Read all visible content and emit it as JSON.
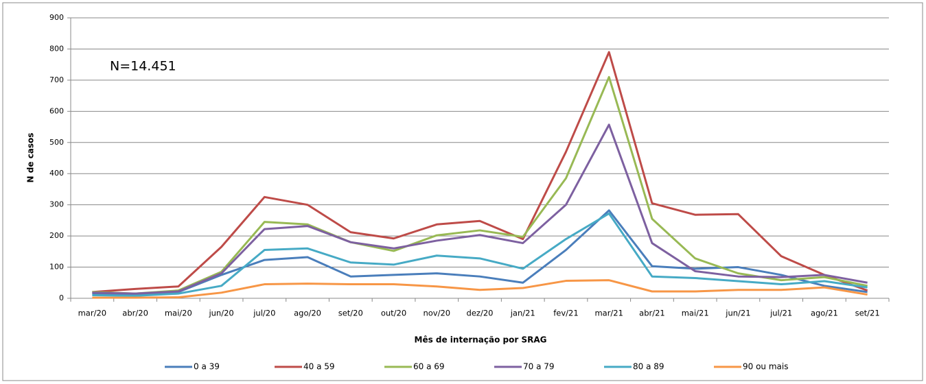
{
  "chart_data": {
    "type": "line",
    "annotation": "N=14.451",
    "xlabel": "Mês de internação por SRAG",
    "ylabel": "N de casos",
    "categories": [
      "mar/20",
      "abr/20",
      "mai/20",
      "jun/20",
      "jul/20",
      "ago/20",
      "set/20",
      "out/20",
      "nov/20",
      "dez/20",
      "jan/21",
      "fev/21",
      "mar/21",
      "abr/21",
      "mai/21",
      "jun/21",
      "jul/21",
      "ago/21",
      "set/21"
    ],
    "series": [
      {
        "name": "0 a 39",
        "color": "#4a7ebb",
        "values": [
          15,
          12,
          20,
          75,
          123,
          132,
          70,
          75,
          80,
          70,
          50,
          155,
          282,
          103,
          95,
          100,
          75,
          40,
          20
        ]
      },
      {
        "name": "40 a 59",
        "color": "#be4b48",
        "values": [
          20,
          30,
          38,
          165,
          325,
          300,
          212,
          192,
          237,
          248,
          190,
          470,
          790,
          305,
          268,
          270,
          135,
          75,
          25
        ]
      },
      {
        "name": "60 a 69",
        "color": "#98b954",
        "values": [
          20,
          15,
          25,
          85,
          245,
          237,
          180,
          152,
          202,
          218,
          197,
          385,
          710,
          255,
          128,
          80,
          58,
          68,
          40
        ]
      },
      {
        "name": "70 a 79",
        "color": "#7d60a0",
        "values": [
          18,
          15,
          22,
          80,
          222,
          232,
          180,
          160,
          185,
          203,
          177,
          300,
          557,
          177,
          87,
          70,
          68,
          75,
          50
        ]
      },
      {
        "name": "80 a 89",
        "color": "#46aac5",
        "values": [
          10,
          8,
          15,
          40,
          155,
          160,
          115,
          108,
          137,
          128,
          95,
          190,
          272,
          70,
          65,
          55,
          45,
          55,
          35
        ]
      },
      {
        "name": "90 ou mais",
        "color": "#f79646",
        "values": [
          2,
          2,
          3,
          18,
          45,
          47,
          45,
          45,
          38,
          27,
          33,
          56,
          58,
          22,
          22,
          27,
          27,
          35,
          12
        ]
      }
    ],
    "ylim": [
      0,
      900
    ],
    "yticks": [
      0,
      100,
      200,
      300,
      400,
      500,
      600,
      700,
      800,
      900
    ],
    "grid": true,
    "legend": "bottom"
  }
}
